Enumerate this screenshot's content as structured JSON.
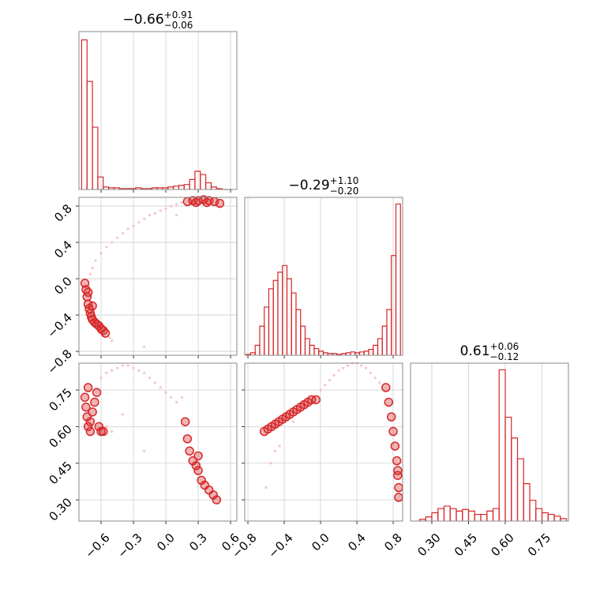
{
  "chart_data": [
    {
      "type": "histogram",
      "title": "−0.66",
      "title_sup": "+0.91",
      "title_sub": "−0.06",
      "color": "#d62728",
      "bins": [
        -0.78,
        -0.73,
        -0.68,
        -0.63,
        -0.58,
        -0.53,
        -0.48,
        -0.43,
        -0.38,
        -0.33,
        -0.28,
        -0.23,
        -0.18,
        -0.13,
        -0.08,
        -0.03,
        0.02,
        0.07,
        0.12,
        0.17,
        0.22,
        0.27,
        0.32,
        0.37,
        0.42,
        0.47,
        0.52,
        0.57,
        0.62
      ],
      "values": [
        180,
        130,
        75,
        15,
        3,
        2,
        2,
        1,
        1,
        1,
        2,
        1,
        1,
        2,
        2,
        2,
        3,
        4,
        5,
        6,
        12,
        22,
        18,
        8,
        3,
        1,
        0,
        0
      ],
      "xlim": [
        -0.805,
        0.658
      ],
      "xticks": [
        -0.6,
        -0.3,
        0,
        0.3,
        0.6
      ],
      "ylim": [
        0,
        190
      ],
      "grid": true
    },
    {
      "type": "scatter",
      "xlim": [
        -0.805,
        0.658
      ],
      "xticks": [
        -0.6,
        -0.3,
        0,
        0.3,
        0.6
      ],
      "ylim": [
        -0.843,
        0.896
      ],
      "yticks": [
        {
          "value": -0.8,
          "label": "−0.8"
        },
        {
          "value": -0.4,
          "label": "−0.4"
        },
        {
          "value": 0,
          "label": "0.0"
        },
        0.4,
        0.8
      ],
      "grid": true,
      "series": [
        {
          "color": "#f4b6b6",
          "x": [
            -0.7,
            -0.68,
            -0.65,
            -0.6,
            -0.55,
            -0.5,
            -0.45,
            -0.4,
            -0.35,
            -0.3,
            -0.25,
            -0.2,
            -0.15,
            -0.1,
            -0.05,
            0.0,
            0.05,
            0.1,
            0.15,
            -0.62,
            -0.58,
            -0.52,
            -0.66,
            -0.5,
            -0.2,
            0.1
          ],
          "y": [
            0.05,
            0.12,
            0.2,
            0.28,
            0.35,
            0.4,
            0.45,
            0.5,
            0.55,
            0.58,
            0.62,
            0.66,
            0.7,
            0.72,
            0.75,
            0.77,
            0.8,
            0.82,
            0.84,
            -0.6,
            -0.62,
            -0.65,
            -0.5,
            -0.68,
            -0.75,
            0.7
          ]
        },
        {
          "color": "#d62728",
          "x": [
            -0.75,
            -0.74,
            -0.73,
            -0.72,
            -0.71,
            -0.7,
            -0.69,
            -0.68,
            -0.66,
            -0.64,
            -0.62,
            -0.6,
            -0.58,
            -0.56,
            -0.72,
            -0.68,
            0.2,
            0.25,
            0.3,
            0.35,
            0.4,
            0.45,
            0.5,
            0.28,
            0.38
          ],
          "y": [
            -0.05,
            -0.12,
            -0.2,
            -0.28,
            -0.33,
            -0.38,
            -0.42,
            -0.45,
            -0.48,
            -0.5,
            -0.52,
            -0.55,
            -0.57,
            -0.6,
            -0.15,
            -0.3,
            0.85,
            0.86,
            0.86,
            0.87,
            0.86,
            0.85,
            0.83,
            0.84,
            0.84
          ]
        }
      ]
    },
    {
      "type": "histogram",
      "title": "−0.29",
      "title_sup": "+1.10",
      "title_sub": "−0.20",
      "color": "#d62728",
      "bins": [
        -0.82,
        -0.77,
        -0.72,
        -0.67,
        -0.62,
        -0.57,
        -0.52,
        -0.47,
        -0.42,
        -0.37,
        -0.32,
        -0.27,
        -0.22,
        -0.17,
        -0.12,
        -0.07,
        -0.02,
        0.03,
        0.08,
        0.13,
        0.18,
        0.23,
        0.28,
        0.33,
        0.38,
        0.43,
        0.48,
        0.53,
        0.58,
        0.63,
        0.68,
        0.73,
        0.78,
        0.83,
        0.88
      ],
      "values": [
        1,
        3,
        12,
        35,
        58,
        80,
        90,
        100,
        108,
        92,
        75,
        55,
        35,
        20,
        12,
        8,
        5,
        3,
        2,
        2,
        1,
        2,
        3,
        4,
        3,
        4,
        5,
        7,
        12,
        20,
        35,
        55,
        120,
        182
      ],
      "xlim": [
        -0.835,
        0.904
      ],
      "xticks": [
        -0.8,
        -0.4,
        0,
        0.4,
        0.8
      ],
      "ylim": [
        0,
        190
      ],
      "grid": true
    },
    {
      "type": "scatter",
      "xlim": [
        -0.805,
        0.658
      ],
      "xticks": [
        {
          "value": -0.6,
          "label": "−0.6"
        },
        {
          "value": -0.3,
          "label": "−0.3"
        },
        {
          "value": 0,
          "label": "0.0"
        },
        0.3,
        0.6
      ],
      "ylim": [
        0.213,
        0.86
      ],
      "yticks": [
        {
          "value": 0.3,
          "label": "0.30"
        },
        {
          "value": 0.45,
          "label": "0.45"
        },
        {
          "value": 0.6,
          "label": "0.60"
        },
        0.75
      ],
      "grid": true,
      "series": [
        {
          "color": "#f4b6b6",
          "x": [
            -0.6,
            -0.55,
            -0.5,
            -0.45,
            -0.4,
            -0.35,
            -0.3,
            -0.25,
            -0.2,
            -0.15,
            -0.1,
            -0.05,
            0.0,
            0.05,
            0.1,
            -0.55,
            -0.5,
            -0.2,
            0.15,
            -0.4
          ],
          "y": [
            0.8,
            0.82,
            0.83,
            0.84,
            0.85,
            0.85,
            0.84,
            0.83,
            0.82,
            0.8,
            0.78,
            0.76,
            0.74,
            0.72,
            0.7,
            0.6,
            0.58,
            0.5,
            0.72,
            0.65
          ]
        },
        {
          "color": "#d62728",
          "x": [
            -0.75,
            -0.74,
            -0.73,
            -0.72,
            -0.7,
            -0.68,
            -0.66,
            -0.64,
            -0.62,
            -0.6,
            -0.58,
            -0.72,
            -0.7,
            0.18,
            0.2,
            0.22,
            0.25,
            0.28,
            0.3,
            0.33,
            0.36,
            0.4,
            0.44,
            0.47,
            0.3
          ],
          "y": [
            0.72,
            0.68,
            0.64,
            0.6,
            0.62,
            0.66,
            0.7,
            0.74,
            0.6,
            0.58,
            0.58,
            0.76,
            0.58,
            0.62,
            0.55,
            0.5,
            0.46,
            0.44,
            0.42,
            0.38,
            0.36,
            0.34,
            0.32,
            0.3,
            0.48
          ]
        }
      ]
    },
    {
      "type": "scatter",
      "xlim": [
        -0.835,
        0.904
      ],
      "xticks": [
        {
          "value": -0.8,
          "label": "−0.8"
        },
        {
          "value": -0.4,
          "label": "−0.4"
        },
        {
          "value": 0,
          "label": "0.0"
        },
        0.4,
        0.8
      ],
      "ylim": [
        0.213,
        0.86
      ],
      "yticks": [
        0.3,
        0.45,
        0.6,
        0.75
      ],
      "grid": true,
      "series": [
        {
          "color": "#f4b6b6",
          "x": [
            0.0,
            0.05,
            0.1,
            0.15,
            0.2,
            0.25,
            0.3,
            0.35,
            0.4,
            0.45,
            0.5,
            0.55,
            0.6,
            0.65,
            -0.5,
            -0.55,
            -0.45,
            -0.6,
            -0.3,
            -0.2
          ],
          "y": [
            0.75,
            0.77,
            0.79,
            0.81,
            0.83,
            0.84,
            0.85,
            0.86,
            0.86,
            0.85,
            0.84,
            0.82,
            0.8,
            0.78,
            0.5,
            0.45,
            0.52,
            0.35,
            0.62,
            0.7
          ]
        },
        {
          "color": "#d62728",
          "x": [
            -0.62,
            -0.58,
            -0.54,
            -0.5,
            -0.46,
            -0.42,
            -0.38,
            -0.34,
            -0.3,
            -0.26,
            -0.22,
            -0.18,
            -0.14,
            -0.1,
            -0.05,
            0.72,
            0.75,
            0.78,
            0.8,
            0.82,
            0.84,
            0.85,
            0.86,
            0.86,
            0.85
          ],
          "y": [
            0.58,
            0.59,
            0.6,
            0.61,
            0.62,
            0.63,
            0.64,
            0.65,
            0.66,
            0.67,
            0.68,
            0.69,
            0.7,
            0.71,
            0.71,
            0.76,
            0.7,
            0.64,
            0.58,
            0.52,
            0.46,
            0.4,
            0.35,
            0.31,
            0.42
          ]
        }
      ]
    },
    {
      "type": "histogram",
      "title": "0.61",
      "title_sup": "+0.06",
      "title_sub": "−0.12",
      "color": "#d62728",
      "bins": [
        0.25,
        0.275,
        0.3,
        0.325,
        0.35,
        0.375,
        0.4,
        0.425,
        0.45,
        0.475,
        0.5,
        0.525,
        0.55,
        0.575,
        0.6,
        0.625,
        0.65,
        0.675,
        0.7,
        0.725,
        0.75,
        0.775,
        0.8,
        0.825,
        0.85
      ],
      "values": [
        2,
        5,
        10,
        15,
        18,
        15,
        12,
        14,
        12,
        8,
        8,
        12,
        15,
        182,
        125,
        100,
        75,
        45,
        25,
        15,
        10,
        8,
        6,
        3
      ],
      "xlim": [
        0.213,
        0.858
      ],
      "xticks": [
        {
          "value": 0.3,
          "label": "0.30"
        },
        {
          "value": 0.45,
          "label": "0.45"
        },
        {
          "value": 0.6,
          "label": "0.60"
        },
        0.75
      ],
      "ylim": [
        0,
        190
      ],
      "grid": true
    }
  ]
}
